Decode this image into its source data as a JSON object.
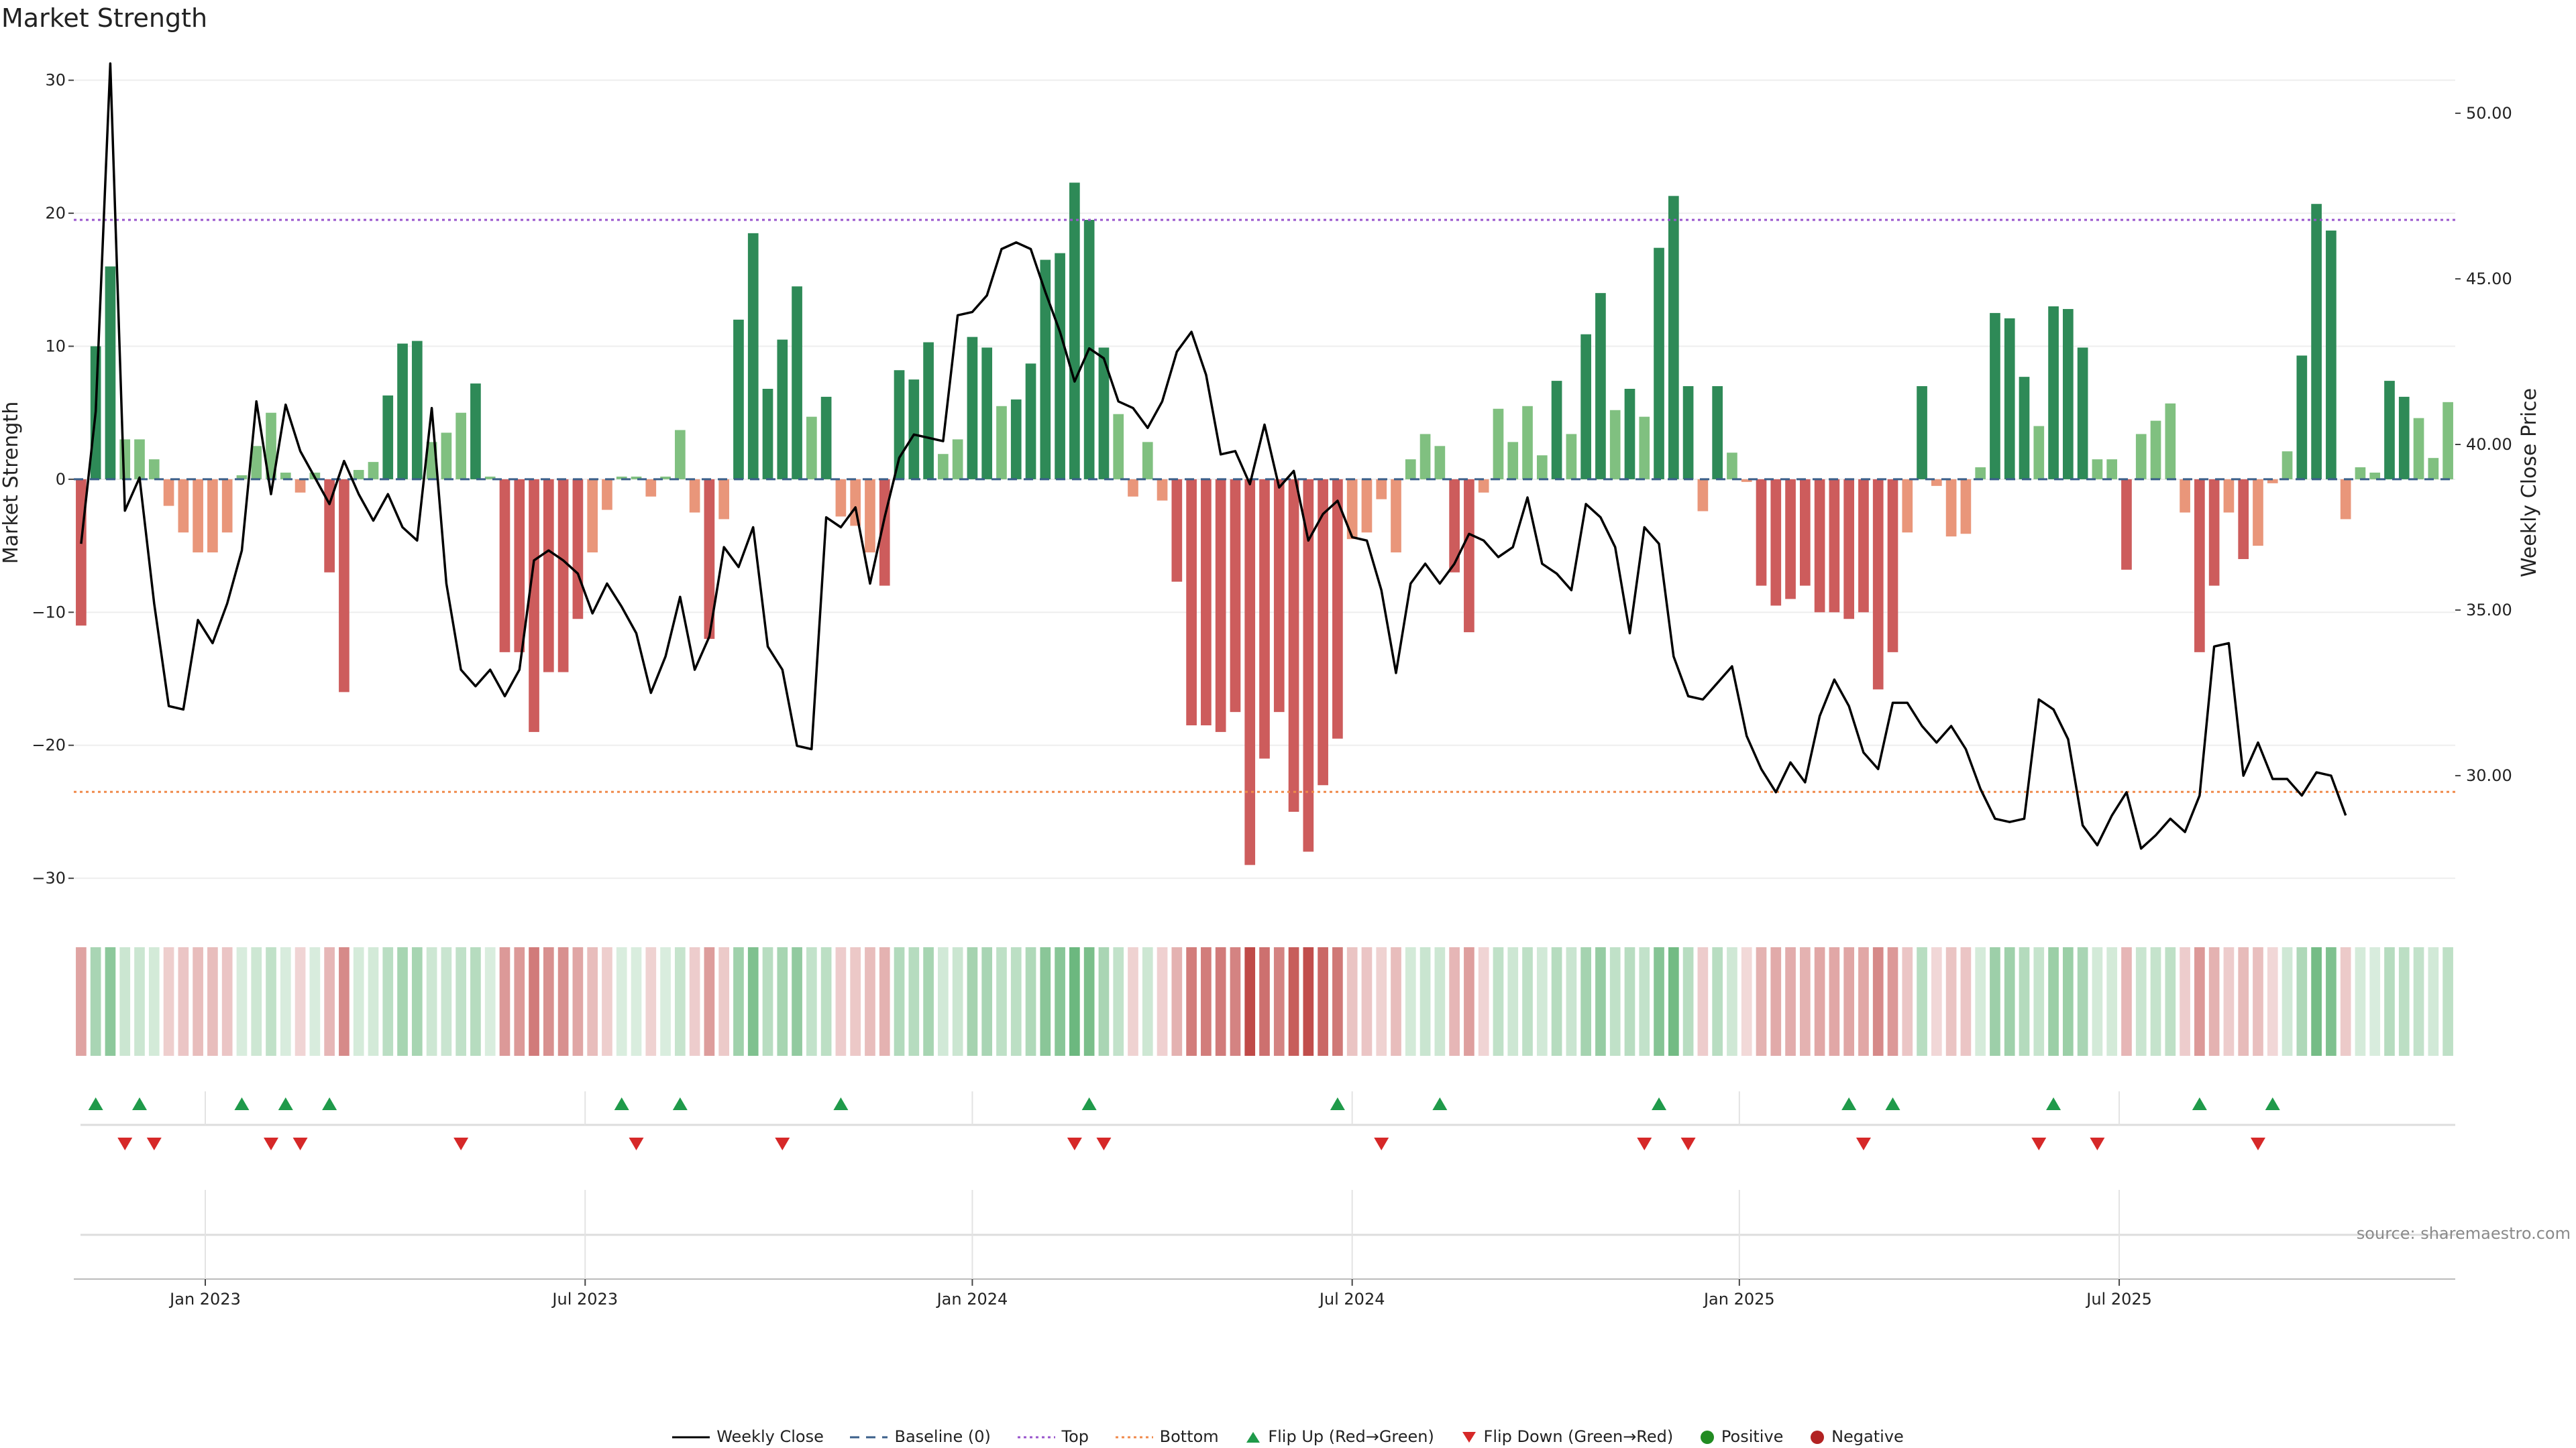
{
  "chart_data": {
    "type": "bar",
    "title": "Market Strength",
    "ylabel": "Market Strength",
    "y2label": "Weekly Close Price",
    "ylim": [
      -31,
      32
    ],
    "y2lim": [
      26.5,
      51.8
    ],
    "yticks": [
      30,
      20,
      10,
      0,
      -10,
      -20,
      -30
    ],
    "yticklabels": [
      "30",
      "20",
      "10",
      "0",
      "−10",
      "−20",
      "−30"
    ],
    "y2ticks": [
      50,
      45,
      40,
      35,
      30
    ],
    "y2ticklabels": [
      "50.00",
      "45.00",
      "40.00",
      "35.00",
      "30.00"
    ],
    "xticks": [
      {
        "label": "Jan 2023",
        "week": 9
      },
      {
        "label": "Jul 2023",
        "week": 35
      },
      {
        "label": "Jan 2024",
        "week": 61.5
      },
      {
        "label": "Jul 2024",
        "week": 87.5
      },
      {
        "label": "Jan 2025",
        "week": 114
      },
      {
        "label": "Jul 2025",
        "week": 140
      }
    ],
    "top_line": 19.5,
    "bottom_line": -23.5,
    "strength": [
      -11,
      10,
      16,
      3,
      3,
      1.5,
      -2,
      -4,
      -5.5,
      -5.5,
      -4,
      0.3,
      2.5,
      5,
      0.5,
      -1,
      0.5,
      -7,
      -16,
      0.7,
      1.3,
      6.3,
      10.2,
      10.4,
      2.8,
      3.5,
      5,
      7.2,
      0.2,
      -13,
      -13,
      -19,
      -14.5,
      -14.5,
      -10.5,
      -5.5,
      -2.3,
      0.2,
      0.2,
      -1.3,
      0.2,
      3.7,
      -2.5,
      -12,
      -3,
      12,
      18.5,
      6.8,
      10.5,
      14.5,
      4.7,
      6.2,
      -2.8,
      -3.5,
      -5.5,
      -8,
      8.2,
      7.5,
      10.3,
      1.9,
      3,
      10.7,
      9.9,
      5.5,
      6,
      8.7,
      16.5,
      17,
      22.3,
      19.5,
      9.9,
      4.9,
      -1.3,
      2.8,
      -1.6,
      -7.7,
      -18.5,
      -18.5,
      -19,
      -17.5,
      -29,
      -21,
      -17.5,
      -25,
      -28,
      -23,
      -19.5,
      -4.5,
      -4,
      -1.5,
      -5.5,
      1.5,
      3.4,
      2.5,
      -7,
      -11.5,
      -1,
      5.3,
      2.8,
      5.5,
      1.8,
      7.4,
      3.4,
      10.9,
      14,
      5.2,
      6.8,
      4.7,
      17.4,
      21.3,
      7,
      -2.4,
      7,
      2,
      -0.2,
      -8,
      -9.5,
      -9,
      -8,
      -10,
      -10,
      -10.5,
      -10,
      -15.8,
      -13,
      -4,
      7,
      -0.5,
      -4.3,
      -4.1,
      0.9,
      12.5,
      12.1,
      7.7,
      4,
      13,
      12.8,
      9.9,
      1.5,
      1.5,
      -6.8,
      3.4,
      4.4,
      5.7,
      -2.5,
      -13,
      -8,
      -2.5,
      -6,
      -5,
      -0.3,
      2.1,
      9.3,
      20.7,
      18.7,
      -3,
      0.9,
      0.5,
      7.4,
      6.2,
      4.6,
      1.6,
      5.8
    ],
    "price": [
      37,
      41,
      51.5,
      38,
      39,
      35.2,
      32.1,
      32,
      34.7,
      34,
      35.2,
      36.8,
      41.3,
      38.5,
      41.2,
      39.8,
      39,
      38.2,
      39.5,
      38.5,
      37.7,
      38.5,
      37.5,
      37.1,
      41.1,
      35.8,
      33.2,
      32.7,
      33.2,
      32.4,
      33.2,
      36.5,
      36.8,
      36.5,
      36.1,
      34.9,
      35.8,
      35.1,
      34.3,
      32.5,
      33.6,
      35.4,
      33.2,
      34.2,
      36.9,
      36.3,
      37.5,
      33.9,
      33.2,
      30.9,
      30.8,
      37.8,
      37.5,
      38.1,
      35.8,
      37.8,
      39.6,
      40.3,
      40.2,
      40.1,
      43.9,
      44,
      44.5,
      45.9,
      46.1,
      45.9,
      44.6,
      43.4,
      41.9,
      42.9,
      42.6,
      41.3,
      41.1,
      40.5,
      41.3,
      42.8,
      43.4,
      42.1,
      39.7,
      39.8,
      38.8,
      40.6,
      38.7,
      39.2,
      37.1,
      37.9,
      38.3,
      37.2,
      37.1,
      35.6,
      33.1,
      35.8,
      36.4,
      35.8,
      36.4,
      37.3,
      37.1,
      36.6,
      36.9,
      38.4,
      36.4,
      36.1,
      35.6,
      38.2,
      37.8,
      36.9,
      34.3,
      37.5,
      37,
      33.6,
      32.4,
      32.3,
      32.8,
      33.3,
      31.2,
      30.2,
      29.5,
      30.4,
      29.8,
      31.8,
      32.9,
      32.1,
      30.7,
      30.2,
      32.2,
      32.2,
      31.5,
      31,
      31.5,
      30.8,
      29.6,
      28.7,
      28.6,
      28.7,
      32.3,
      32,
      31.1,
      28.5,
      27.9,
      28.8,
      29.5,
      27.8,
      28.2,
      28.7,
      28.3,
      29.4,
      33.9,
      34,
      30,
      31,
      29.9,
      29.9,
      29.4,
      30.1,
      30,
      28.8
    ],
    "flip_up_weeks": [
      1,
      4,
      11,
      14,
      17,
      37,
      41,
      52,
      69,
      86,
      93,
      108,
      121,
      124,
      135,
      145,
      150
    ],
    "flip_down_weeks": [
      3,
      5,
      13,
      15,
      26,
      38,
      48,
      68,
      70,
      89,
      107,
      110,
      122,
      134,
      138,
      149
    ],
    "series_names": {
      "weekly_close": "Weekly Close",
      "baseline": "Baseline (0)",
      "top": "Top",
      "bottom": "Bottom",
      "flip_up": "Flip Up (Red→Green)",
      "flip_down": "Flip Down (Green→Red)",
      "positive": "Positive",
      "negative": "Negative"
    },
    "colors": {
      "pos_strong": "#2e8a57",
      "pos_weak": "#80c080",
      "neg_strong": "#cd5c5c",
      "neg_weak": "#e9967a",
      "price_line": "#000000",
      "baseline": "#3a5f8a",
      "top": "#9955cc",
      "bottom": "#f08a4b",
      "flip_up": "#1f9a4a",
      "flip_down": "#d62828",
      "positive_dot": "#228b22",
      "negative_dot": "#b22222",
      "grid": "#eeeeee"
    }
  },
  "source_note": "source: sharemaestro.com"
}
